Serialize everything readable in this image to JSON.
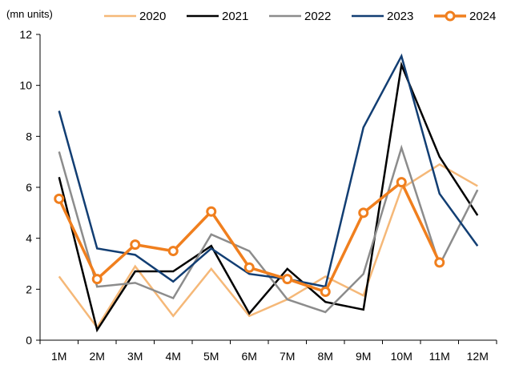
{
  "chart_data": {
    "type": "line",
    "unit_label": "(mn units)",
    "categories": [
      "1M",
      "2M",
      "3M",
      "4M",
      "5M",
      "6M",
      "7M",
      "8M",
      "9M",
      "10M",
      "11M",
      "12M"
    ],
    "ylim": [
      0,
      12
    ],
    "yticks": [
      0,
      2,
      4,
      6,
      8,
      10,
      12
    ],
    "grid": false,
    "legend_position": "top",
    "series": [
      {
        "name": "2020",
        "color": "#F5B878",
        "markers": false,
        "values": [
          2.5,
          0.5,
          2.9,
          0.95,
          2.8,
          0.95,
          1.6,
          2.5,
          1.75,
          5.95,
          6.9,
          6.05
        ]
      },
      {
        "name": "2021",
        "color": "#000000",
        "markers": false,
        "values": [
          6.4,
          0.4,
          2.7,
          2.7,
          3.7,
          1.05,
          2.8,
          1.5,
          1.2,
          10.8,
          7.2,
          4.9
        ]
      },
      {
        "name": "2022",
        "color": "#8C8C8C",
        "markers": false,
        "values": [
          7.4,
          2.1,
          2.25,
          1.65,
          4.15,
          3.5,
          1.6,
          1.1,
          2.6,
          7.55,
          2.95,
          5.9
        ]
      },
      {
        "name": "2023",
        "color": "#123E73",
        "markers": false,
        "values": [
          9.0,
          3.6,
          3.35,
          2.3,
          3.6,
          2.6,
          2.4,
          2.1,
          8.35,
          11.15,
          5.75,
          3.7
        ]
      },
      {
        "name": "2024",
        "color": "#F07F1E",
        "markers": true,
        "values": [
          5.55,
          2.4,
          3.75,
          3.5,
          5.05,
          2.85,
          2.4,
          1.9,
          5.0,
          6.2,
          3.05,
          null
        ]
      }
    ]
  }
}
